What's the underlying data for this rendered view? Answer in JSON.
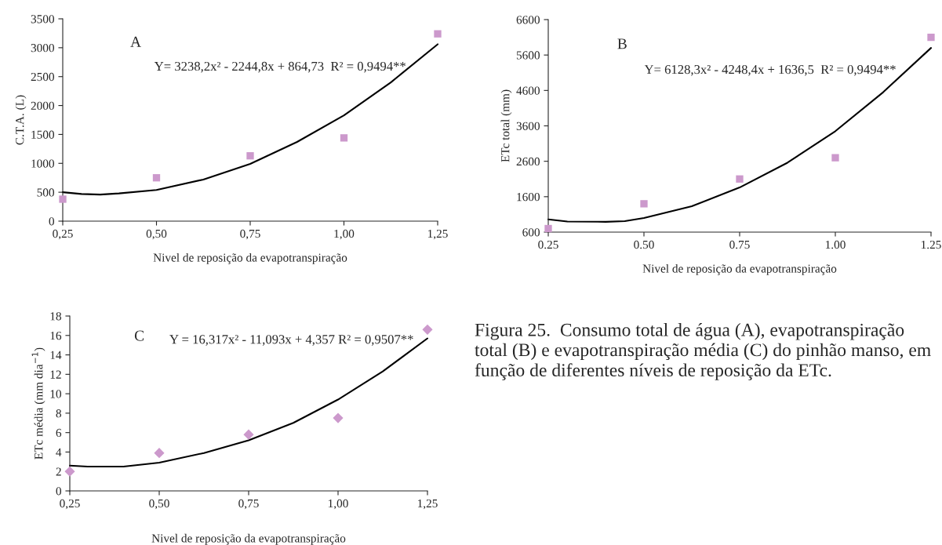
{
  "chart_data": [
    {
      "type": "scatter",
      "xlabel": "Nivel de reposição da evapotranspiração",
      "ylabel": "C.T.A. (L)",
      "annotations": [
        "A",
        "Y= 3238,2x² - 2244,8x + 864,73  R² = 0,9494**"
      ],
      "xlim": [
        0.25,
        1.25
      ],
      "xticks": [
        {
          "value": 0.25,
          "label": "0,25"
        },
        {
          "value": 0.5,
          "label": "0,50"
        },
        {
          "value": 0.75,
          "label": "0,75"
        },
        {
          "value": 1.0,
          "label": "1,00"
        },
        {
          "value": 1.25,
          "label": "1,25"
        }
      ],
      "ylim": [
        0,
        3500
      ],
      "yticks": [
        0,
        500,
        1000,
        1500,
        2000,
        2500,
        3000,
        3500
      ],
      "grid": false,
      "series": [
        {
          "marker": "square",
          "color": "#cc99cc",
          "x": [
            0.25,
            0.5,
            0.75,
            1.0,
            1.25
          ],
          "values": [
            380,
            750,
            1130,
            1440,
            3240
          ]
        },
        {
          "type": "line",
          "color": "#000000",
          "x": [
            0.25,
            0.3,
            0.35,
            0.4,
            0.5,
            0.625,
            0.75,
            0.875,
            1.0,
            1.125,
            1.25
          ],
          "values": [
            500,
            470,
            460,
            480,
            540,
            720,
            990,
            1370,
            1830,
            2400,
            3060
          ]
        }
      ]
    },
    {
      "type": "scatter",
      "xlabel": "Nivel de reposição da evapotranspiração",
      "ylabel": "ETc total (mm)",
      "annotations": [
        "B",
        "Y= 6128,3x² - 4248,4x + 1636,5  R² = 0,9494**"
      ],
      "xlim": [
        0.25,
        1.25
      ],
      "xticks": [
        {
          "value": 0.25,
          "label": "0.25"
        },
        {
          "value": 0.5,
          "label": "0.50"
        },
        {
          "value": 0.75,
          "label": "0.75"
        },
        {
          "value": 1.0,
          "label": "1.00"
        },
        {
          "value": 1.25,
          "label": "1.25"
        }
      ],
      "ylim": [
        600,
        6600
      ],
      "yticks": [
        600,
        1600,
        2600,
        3600,
        4600,
        5600,
        6600
      ],
      "grid": false,
      "series": [
        {
          "marker": "square",
          "color": "#cc99cc",
          "x": [
            0.25,
            0.5,
            0.75,
            1.0,
            1.25
          ],
          "values": [
            700,
            1400,
            2100,
            2700,
            6100
          ]
        },
        {
          "type": "line",
          "color": "#000000",
          "x": [
            0.25,
            0.3,
            0.4,
            0.45,
            0.5,
            0.625,
            0.75,
            0.875,
            1.0,
            1.125,
            1.25
          ],
          "values": [
            960,
            900,
            890,
            910,
            1000,
            1330,
            1860,
            2560,
            3450,
            4550,
            5800
          ]
        }
      ]
    },
    {
      "type": "scatter",
      "xlabel": "Nivel de reposição da evapotranspiração",
      "ylabel": "ETc média (mm dia$^{−1}$)",
      "annotations": [
        "C",
        "Y = 16,317x² - 11,093x + 4,357 R² = 0,9507**",
        "Figura 25.  Consumo total de água (A), evapotranspiração total (B) e evapotranspiração média (C) do pinhão manso, em função de diferentes níveis de reposição da ETc."
      ],
      "xlim": [
        0.25,
        1.25
      ],
      "xticks": [
        {
          "value": 0.25,
          "label": "0,25"
        },
        {
          "value": 0.5,
          "label": "0,50"
        },
        {
          "value": 0.75,
          "label": "0,75"
        },
        {
          "value": 1.0,
          "label": "1,00"
        },
        {
          "value": 1.25,
          "label": "1,25"
        }
      ],
      "ylim": [
        0,
        18
      ],
      "yticks": [
        0,
        2,
        4,
        6,
        8,
        10,
        12,
        14,
        16,
        18
      ],
      "grid": false,
      "series": [
        {
          "marker": "diamond",
          "color": "#cc99cc",
          "x": [
            0.25,
            0.5,
            0.75,
            1.0,
            1.25
          ],
          "values": [
            2.0,
            3.9,
            5.8,
            7.5,
            16.6
          ]
        },
        {
          "type": "line",
          "color": "#000000",
          "x": [
            0.25,
            0.3,
            0.4,
            0.5,
            0.625,
            0.75,
            0.875,
            1.0,
            1.125,
            1.25
          ],
          "values": [
            2.6,
            2.5,
            2.5,
            2.9,
            3.9,
            5.2,
            7.0,
            9.4,
            12.3,
            15.7
          ]
        }
      ]
    }
  ]
}
